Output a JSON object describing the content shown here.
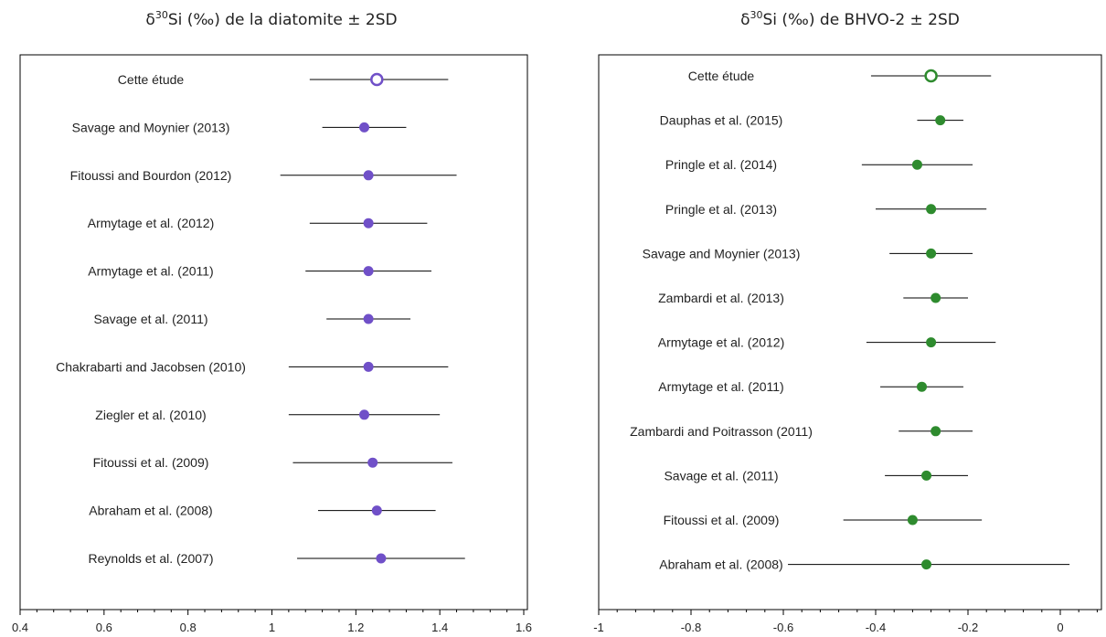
{
  "chart_data": [
    {
      "type": "scatter",
      "title": {
        "prefix": "δ",
        "sup": "30",
        "rest": "Si (‰) de la diatomite ± 2SD"
      },
      "xlim": [
        0.4,
        1.6
      ],
      "ticks": [
        "0.4",
        "0.6",
        "0.8",
        "1",
        "1.2",
        "1.4",
        "1.6"
      ],
      "color": "#7050C8",
      "series": [
        {
          "label": "Cette étude",
          "value": 1.25,
          "low": 1.09,
          "high": 1.42,
          "hollow": true
        },
        {
          "label": "Savage and Moynier (2013)",
          "value": 1.22,
          "low": 1.12,
          "high": 1.32
        },
        {
          "label": "Fitoussi and Bourdon (2012)",
          "value": 1.23,
          "low": 1.02,
          "high": 1.44
        },
        {
          "label": "Armytage et al. (2012)",
          "value": 1.23,
          "low": 1.09,
          "high": 1.37
        },
        {
          "label": "Armytage et al. (2011)",
          "value": 1.23,
          "low": 1.08,
          "high": 1.38
        },
        {
          "label": "Savage et al. (2011)",
          "value": 1.23,
          "low": 1.13,
          "high": 1.33
        },
        {
          "label": "Chakrabarti and Jacobsen (2010)",
          "value": 1.23,
          "low": 1.04,
          "high": 1.42
        },
        {
          "label": "Ziegler et al. (2010)",
          "value": 1.22,
          "low": 1.04,
          "high": 1.4
        },
        {
          "label": "Fitoussi et al. (2009)",
          "value": 1.24,
          "low": 1.05,
          "high": 1.43
        },
        {
          "label": "Abraham et al. (2008)",
          "value": 1.25,
          "low": 1.11,
          "high": 1.39
        },
        {
          "label": "Reynolds et al. (2007)",
          "value": 1.26,
          "low": 1.06,
          "high": 1.46
        }
      ]
    },
    {
      "type": "scatter",
      "title": {
        "prefix": "δ",
        "sup": "30",
        "rest": "Si (‰) de BHVO-2 ± 2SD"
      },
      "xlim": [
        -1,
        0.1
      ],
      "ticks": [
        "-1",
        "-0.8",
        "-0.6",
        "-0.4",
        "-0.2",
        "0"
      ],
      "color": "#2E8B2E",
      "series": [
        {
          "label": "Cette étude",
          "value": -0.28,
          "low": -0.41,
          "high": -0.15,
          "hollow": true
        },
        {
          "label": "Dauphas et al. (2015)",
          "value": -0.26,
          "low": -0.31,
          "high": -0.21
        },
        {
          "label": "Pringle et al. (2014)",
          "value": -0.31,
          "low": -0.43,
          "high": -0.19
        },
        {
          "label": "Pringle et al. (2013)",
          "value": -0.28,
          "low": -0.4,
          "high": -0.16
        },
        {
          "label": "Savage and Moynier (2013)",
          "value": -0.28,
          "low": -0.37,
          "high": -0.19
        },
        {
          "label": "Zambardi et al. (2013)",
          "value": -0.27,
          "low": -0.34,
          "high": -0.2
        },
        {
          "label": "Armytage et al. (2012)",
          "value": -0.28,
          "low": -0.42,
          "high": -0.14
        },
        {
          "label": "Armytage et al. (2011)",
          "value": -0.3,
          "low": -0.39,
          "high": -0.21
        },
        {
          "label": "Zambardi and Poitrasson (2011)",
          "value": -0.27,
          "low": -0.35,
          "high": -0.19
        },
        {
          "label": "Savage et al. (2011)",
          "value": -0.29,
          "low": -0.38,
          "high": -0.2
        },
        {
          "label": "Fitoussi et al. (2009)",
          "value": -0.32,
          "low": -0.47,
          "high": -0.17
        },
        {
          "label": "Abraham et al. (2008)",
          "value": -0.29,
          "low": -0.59,
          "high": 0.02
        }
      ]
    }
  ]
}
